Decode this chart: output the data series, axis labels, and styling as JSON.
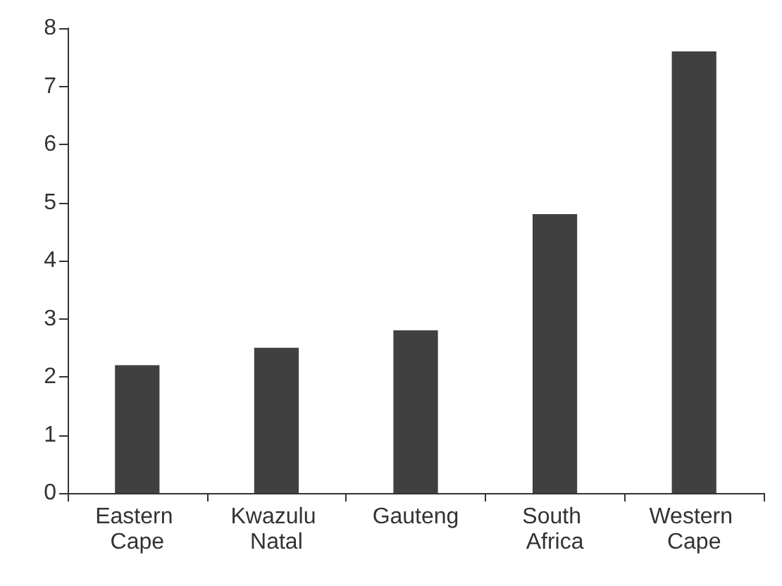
{
  "chart_data": {
    "type": "bar",
    "categories": [
      "Eastern Cape",
      "Kwazulu Natal",
      "Gauteng",
      "South Africa",
      "Western Cape"
    ],
    "values": [
      2.2,
      2.5,
      2.8,
      4.8,
      7.6
    ],
    "color": "#404040",
    "ylim": [
      0,
      8
    ],
    "yticks": [
      0,
      1,
      2,
      3,
      4,
      5,
      6,
      7,
      8
    ],
    "grid": false,
    "legend": false
  }
}
